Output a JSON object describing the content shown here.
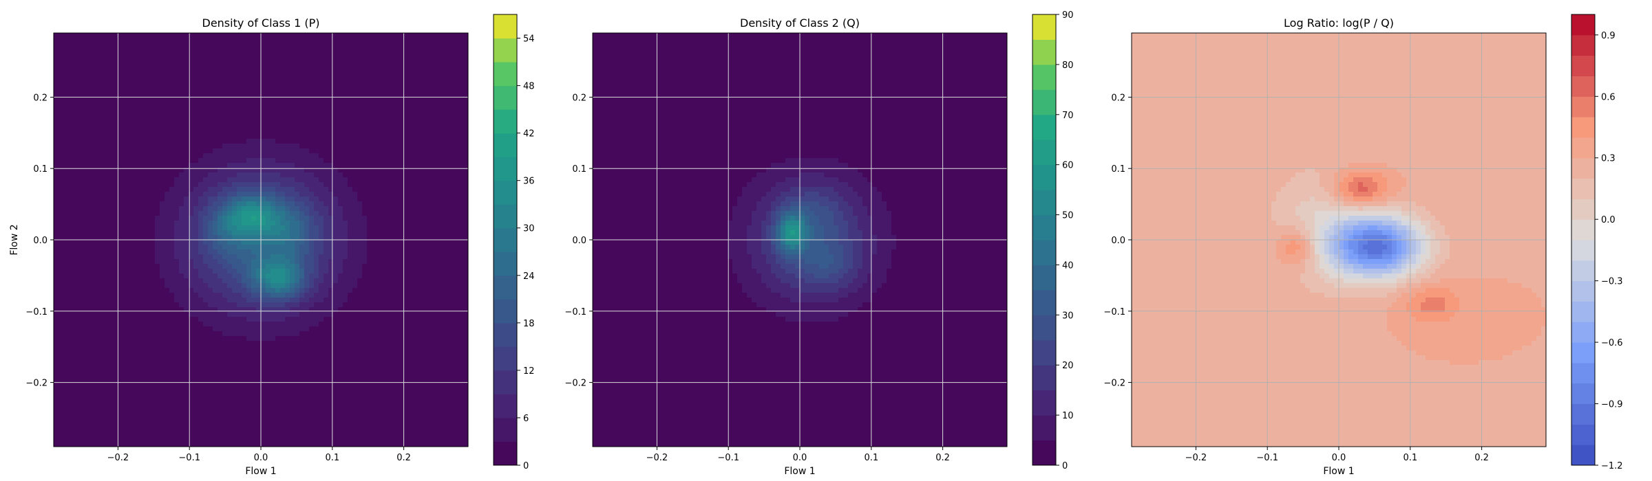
{
  "figure": {
    "background": "#ffffff"
  },
  "chart_data": [
    {
      "type": "heatmap",
      "title": "Density of Class 1 (P)",
      "xlabel": "Flow 1",
      "ylabel": "Flow 2",
      "xlim": [
        -0.29,
        0.29
      ],
      "ylim": [
        -0.29,
        0.29
      ],
      "xticks": [
        -0.2,
        -0.1,
        0.0,
        0.1,
        0.2
      ],
      "xtick_labels": [
        "−0.2",
        "−0.1",
        "0.0",
        "0.1",
        "0.2"
      ],
      "yticks": [
        -0.2,
        -0.1,
        0.0,
        0.1,
        0.2
      ],
      "ytick_labels": [
        "−0.2",
        "−0.1",
        "0.0",
        "0.1",
        "0.2"
      ],
      "grid": true,
      "colormap": "viridis",
      "colorbar": {
        "range": [
          0,
          57
        ],
        "ticks": [
          0,
          6,
          12,
          18,
          24,
          30,
          36,
          42,
          48,
          54
        ],
        "tick_labels": [
          "0",
          "6",
          "12",
          "18",
          "24",
          "30",
          "36",
          "42",
          "48",
          "54"
        ],
        "levels": 19
      },
      "density_components": [
        {
          "x": 0.0,
          "y": 0.0,
          "sx": 0.075,
          "sy": 0.07,
          "amp": 22
        },
        {
          "x": -0.01,
          "y": 0.035,
          "sx": 0.025,
          "sy": 0.02,
          "amp": 16
        },
        {
          "x": 0.025,
          "y": -0.055,
          "sx": 0.025,
          "sy": 0.02,
          "amp": 20
        },
        {
          "x": -0.045,
          "y": 0.02,
          "sx": 0.025,
          "sy": 0.025,
          "amp": 8
        },
        {
          "x": 0.04,
          "y": 0.015,
          "sx": 0.025,
          "sy": 0.025,
          "amp": 8
        }
      ]
    },
    {
      "type": "heatmap",
      "title": "Density of Class 2 (Q)",
      "xlabel": "Flow 1",
      "ylabel": "",
      "xlim": [
        -0.29,
        0.29
      ],
      "ylim": [
        -0.29,
        0.29
      ],
      "xticks": [
        -0.2,
        -0.1,
        0.0,
        0.1,
        0.2
      ],
      "xtick_labels": [
        "−0.2",
        "−0.1",
        "0.0",
        "0.1",
        "0.2"
      ],
      "yticks": [
        -0.2,
        -0.1,
        0.0,
        0.1,
        0.2
      ],
      "ytick_labels": [
        "−0.2",
        "−0.1",
        "0.0",
        "0.1",
        "0.2"
      ],
      "grid": true,
      "colormap": "viridis",
      "colorbar": {
        "range": [
          0,
          90
        ],
        "ticks": [
          0,
          10,
          20,
          30,
          40,
          50,
          60,
          70,
          80,
          90
        ],
        "tick_labels": [
          "0",
          "10",
          "20",
          "30",
          "40",
          "50",
          "60",
          "70",
          "80",
          "90"
        ],
        "levels": 18
      },
      "density_components": [
        {
          "x": 0.015,
          "y": 0.0,
          "sx": 0.065,
          "sy": 0.065,
          "amp": 25
        },
        {
          "x": -0.012,
          "y": 0.01,
          "sx": 0.015,
          "sy": 0.02,
          "amp": 35
        },
        {
          "x": 0.04,
          "y": -0.035,
          "sx": 0.03,
          "sy": 0.025,
          "amp": 10
        },
        {
          "x": 0.02,
          "y": 0.04,
          "sx": 0.03,
          "sy": 0.025,
          "amp": 8
        }
      ]
    },
    {
      "type": "heatmap",
      "title": "Log Ratio: log(P / Q)",
      "xlabel": "Flow 1",
      "ylabel": "",
      "xlim": [
        -0.29,
        0.29
      ],
      "ylim": [
        -0.29,
        0.29
      ],
      "xticks": [
        -0.2,
        -0.1,
        0.0,
        0.1,
        0.2
      ],
      "xtick_labels": [
        "−0.2",
        "−0.1",
        "0.0",
        "0.1",
        "0.2"
      ],
      "yticks": [
        -0.2,
        -0.1,
        0.0,
        0.1,
        0.2
      ],
      "ytick_labels": [
        "−0.2",
        "−0.1",
        "0.0",
        "0.1",
        "0.2"
      ],
      "grid": true,
      "colormap": "coolwarm",
      "colorbar": {
        "range": [
          -1.2,
          1.0
        ],
        "ticks": [
          -1.2,
          -0.9,
          -0.6,
          -0.3,
          0.0,
          0.3,
          0.6,
          0.9
        ],
        "tick_labels": [
          "−1.2",
          "−0.9",
          "−0.6",
          "−0.3",
          "0.0",
          "0.3",
          "0.6",
          "0.9"
        ],
        "levels": 22
      },
      "base_value": 0.3,
      "density_components": [
        {
          "x": 0.055,
          "y": -0.01,
          "sx": 0.045,
          "sy": 0.03,
          "amp": -1.1
        },
        {
          "x": -0.01,
          "y": 0.02,
          "sx": 0.06,
          "sy": 0.06,
          "amp": -0.3
        },
        {
          "x": 0.03,
          "y": 0.07,
          "sx": 0.03,
          "sy": 0.02,
          "amp": 0.5
        },
        {
          "x": -0.06,
          "y": -0.01,
          "sx": 0.02,
          "sy": 0.02,
          "amp": 0.35
        },
        {
          "x": 0.13,
          "y": -0.09,
          "sx": 0.03,
          "sy": 0.02,
          "amp": 0.25
        }
      ]
    }
  ]
}
